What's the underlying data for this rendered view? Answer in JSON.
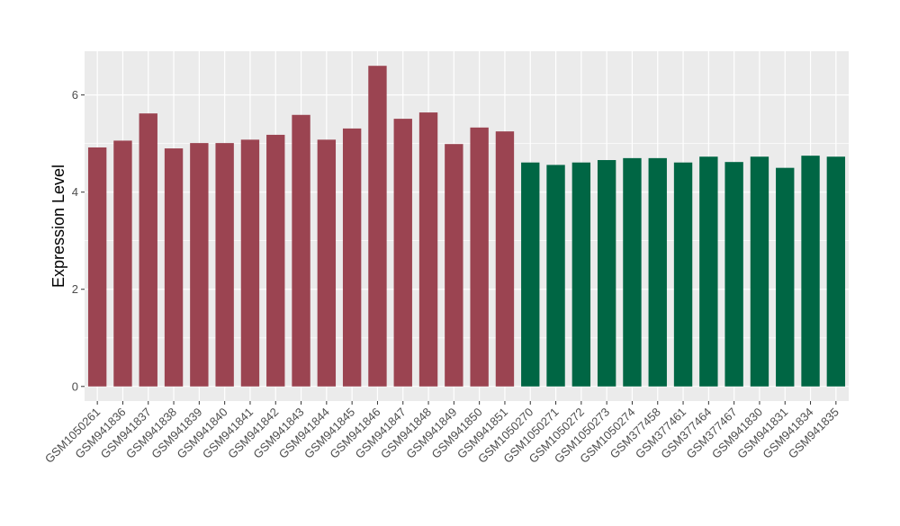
{
  "chart_data": {
    "type": "bar",
    "title": "",
    "xlabel": "",
    "ylabel": "Expression Level",
    "ylim": [
      -0.3,
      6.9
    ],
    "yticks": [
      0,
      2,
      4,
      6
    ],
    "grid": true,
    "legend": "none",
    "colors": {
      "group1": "#9b4451",
      "group2": "#006644",
      "panel": "#ebebeb",
      "grid": "#ffffff"
    },
    "categories": [
      "GSM1050261",
      "GSM941836",
      "GSM941837",
      "GSM941838",
      "GSM941839",
      "GSM941840",
      "GSM941841",
      "GSM941842",
      "GSM941843",
      "GSM941844",
      "GSM941845",
      "GSM941846",
      "GSM941847",
      "GSM941848",
      "GSM941849",
      "GSM941850",
      "GSM941851",
      "GSM1050270",
      "GSM1050271",
      "GSM1050272",
      "GSM1050273",
      "GSM1050274",
      "GSM377458",
      "GSM377461",
      "GSM377464",
      "GSM377467",
      "GSM941830",
      "GSM941831",
      "GSM941834",
      "GSM941835"
    ],
    "values": [
      4.92,
      5.06,
      5.62,
      4.9,
      5.01,
      5.01,
      5.08,
      5.18,
      5.59,
      5.08,
      5.31,
      6.6,
      5.51,
      5.64,
      4.99,
      5.33,
      5.25,
      4.61,
      4.56,
      4.61,
      4.66,
      4.7,
      4.7,
      4.61,
      4.73,
      4.62,
      4.73,
      4.5,
      4.75,
      4.73
    ],
    "groups": [
      1,
      1,
      1,
      1,
      1,
      1,
      1,
      1,
      1,
      1,
      1,
      1,
      1,
      1,
      1,
      1,
      1,
      2,
      2,
      2,
      2,
      2,
      2,
      2,
      2,
      2,
      2,
      2,
      2,
      2
    ]
  }
}
